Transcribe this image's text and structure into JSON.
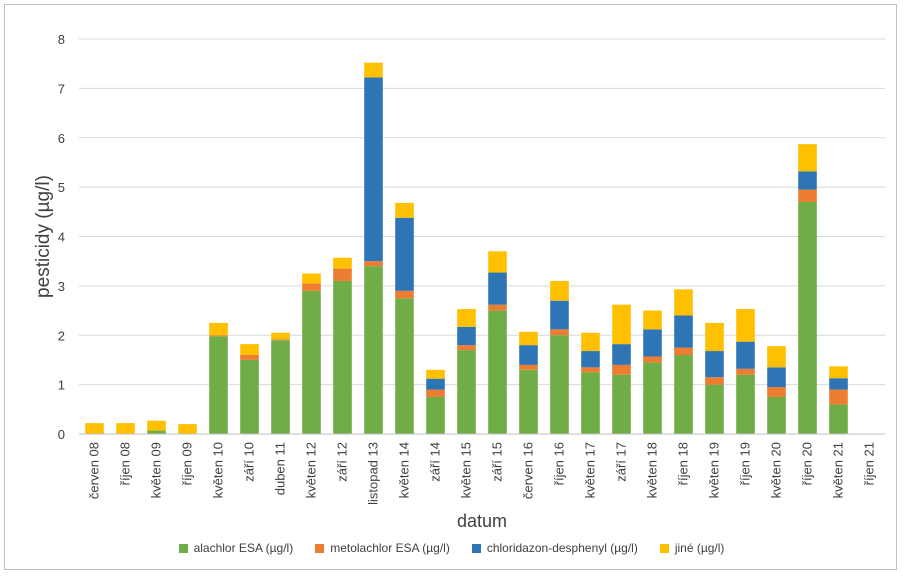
{
  "chart_data": {
    "type": "bar",
    "stacked": true,
    "xlabel": "datum",
    "ylabel": "pesticidy (µg/l)",
    "ylim": [
      0,
      8
    ],
    "yticks": [
      0,
      1,
      2,
      3,
      4,
      5,
      6,
      7,
      8
    ],
    "grid": true,
    "legend_position": "bottom",
    "categories": [
      "červen 08",
      "říjen 08",
      "květen 09",
      "říjen 09",
      "květen 10",
      "září 10",
      "duben 11",
      "květen 12",
      "září 12",
      "listopad 13",
      "květen 14",
      "září 14",
      "květen 15",
      "září 15",
      "červen 16",
      "říjen 16",
      "květen 17",
      "září 17",
      "květen 18",
      "říjen 18",
      "květen 19",
      "říjen 19",
      "květen 20",
      "říjen 20",
      "květen 21",
      "říjen 21"
    ],
    "series": [
      {
        "name": "alachlor ESA (µg/l)",
        "color": "#70ad47",
        "values": [
          0,
          0,
          0.07,
          0,
          1.98,
          1.5,
          1.9,
          2.9,
          3.1,
          3.4,
          2.75,
          0.75,
          1.7,
          2.5,
          1.3,
          2.0,
          1.25,
          1.2,
          1.45,
          1.6,
          1.0,
          1.2,
          0.75,
          4.7,
          0.6,
          0
        ]
      },
      {
        "name": "metolachlor ESA (µg/l)",
        "color": "#ed7d31",
        "values": [
          0,
          0,
          0,
          0,
          0.02,
          0.1,
          0.02,
          0.15,
          0.25,
          0.1,
          0.15,
          0.15,
          0.1,
          0.12,
          0.1,
          0.12,
          0.1,
          0.2,
          0.12,
          0.15,
          0.15,
          0.12,
          0.2,
          0.25,
          0.3,
          0
        ]
      },
      {
        "name": "chloridazon-desphenyl (µg/l)",
        "color": "#2e75b6",
        "values": [
          0,
          0,
          0,
          0,
          0,
          0,
          0,
          0,
          0,
          3.72,
          1.48,
          0.22,
          0.37,
          0.65,
          0.4,
          0.58,
          0.33,
          0.42,
          0.55,
          0.65,
          0.53,
          0.55,
          0.4,
          0.37,
          0.23,
          0
        ]
      },
      {
        "name": "jiné (µg/l)",
        "color": "#ffc000",
        "values": [
          0.22,
          0.22,
          0.2,
          0.2,
          0.25,
          0.22,
          0.13,
          0.2,
          0.22,
          0.3,
          0.3,
          0.18,
          0.36,
          0.43,
          0.27,
          0.4,
          0.37,
          0.8,
          0.38,
          0.53,
          0.57,
          0.66,
          0.43,
          0.55,
          0.24,
          0
        ]
      }
    ]
  }
}
